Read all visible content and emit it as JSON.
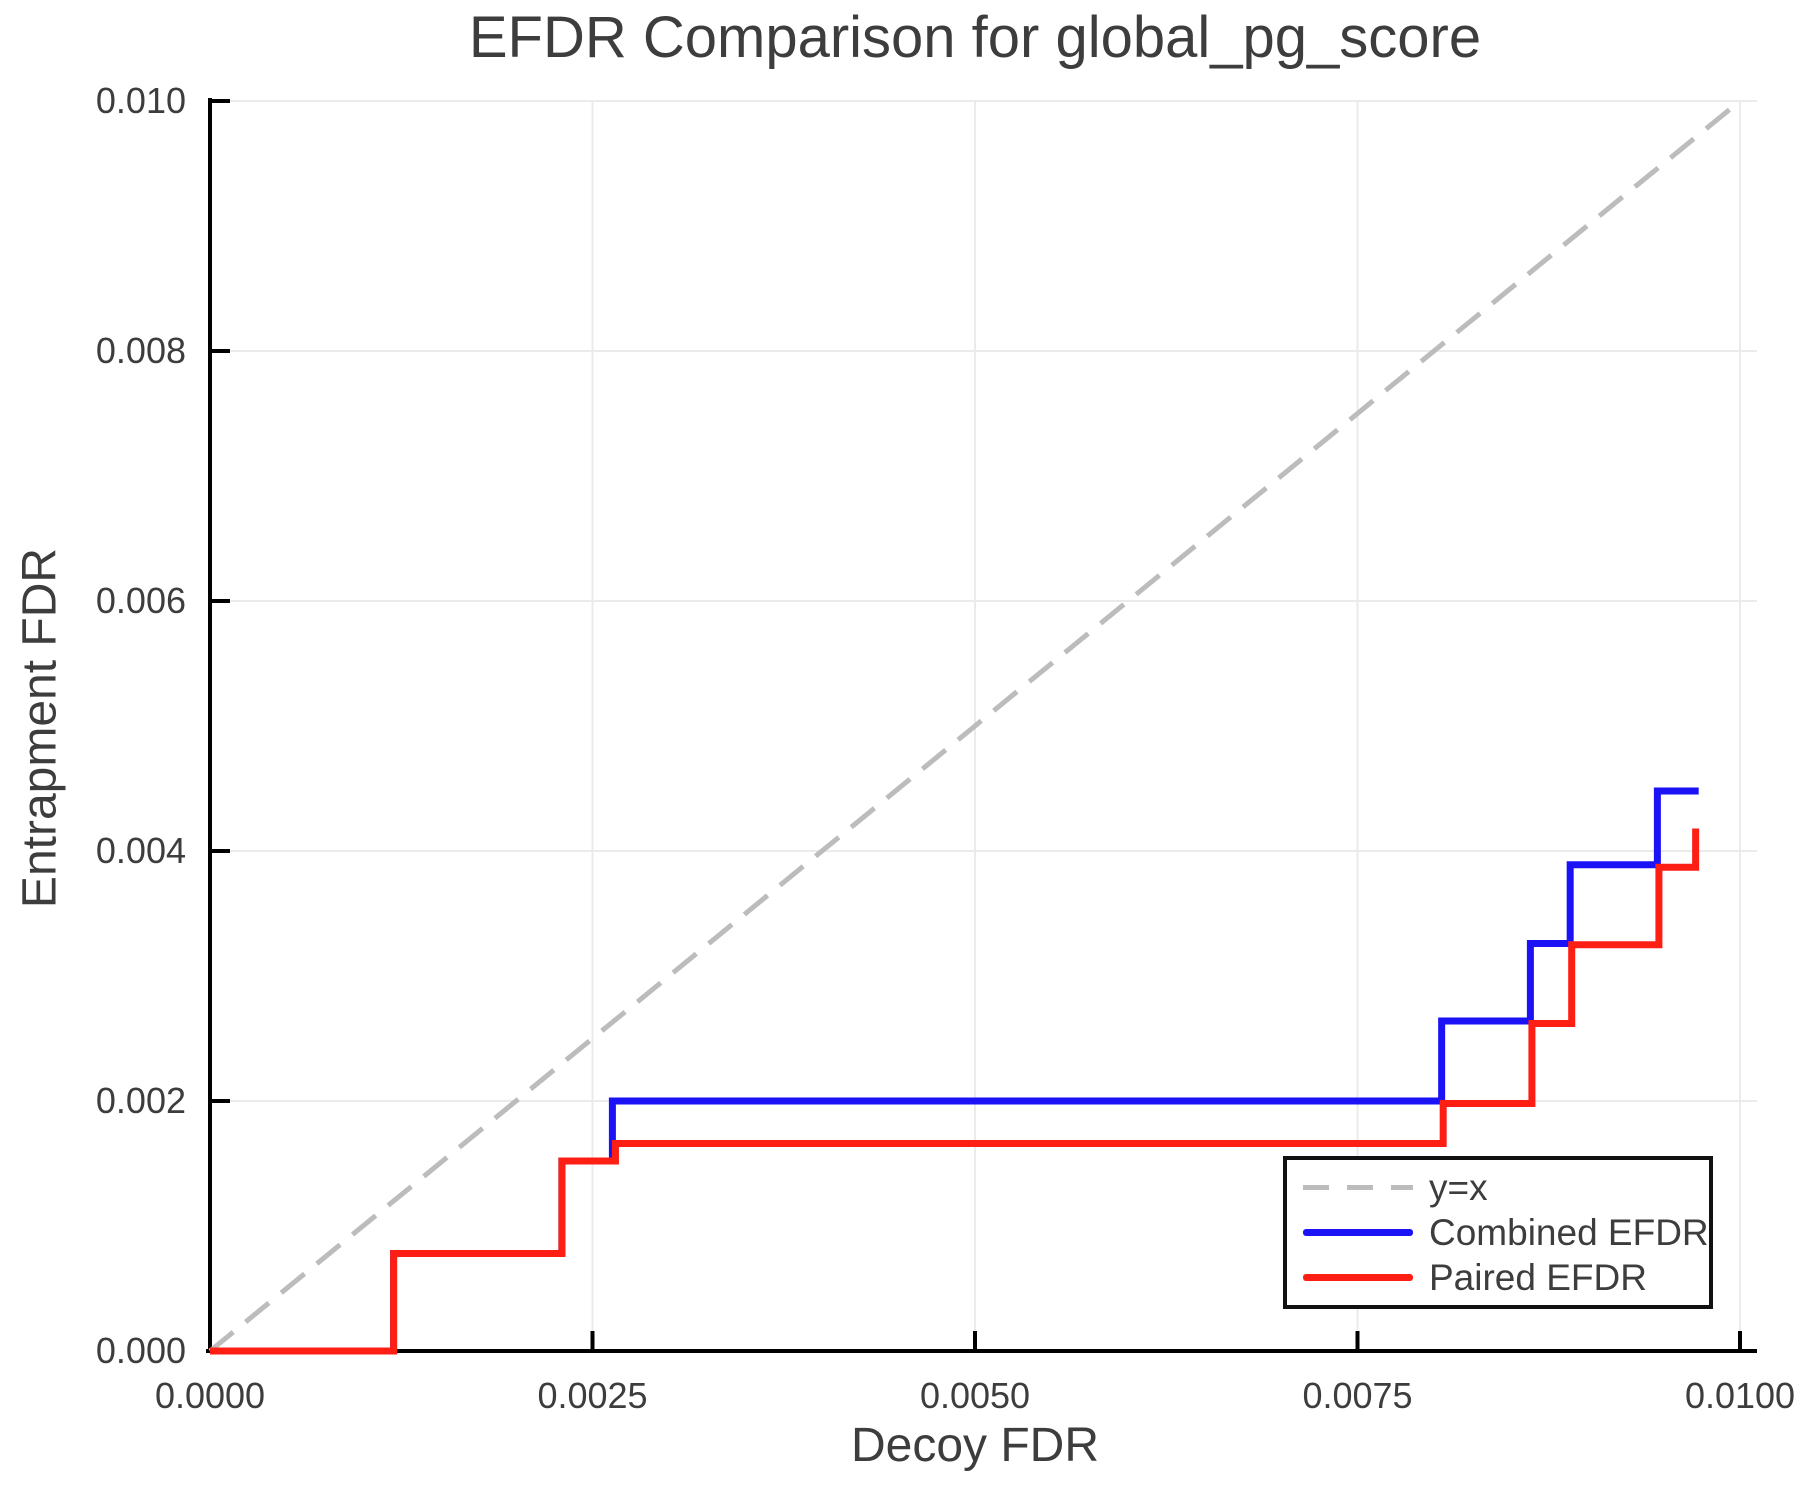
{
  "title": "EFDR Comparison for global_pg_score",
  "axes": {
    "xlabel": "Decoy FDR",
    "ylabel": "Entrapment FDR",
    "xlim": [
      0,
      0.01
    ],
    "ylim": [
      0,
      0.01
    ],
    "grid": true,
    "x_ticks": [
      {
        "value": 0.0,
        "label": "0.0000"
      },
      {
        "value": 0.0025,
        "label": "0.0025"
      },
      {
        "value": 0.005,
        "label": "0.0050"
      },
      {
        "value": 0.0075,
        "label": "0.0075"
      },
      {
        "value": 0.01,
        "label": "0.0100"
      }
    ],
    "y_ticks": [
      {
        "value": 0.0,
        "label": "0.000"
      },
      {
        "value": 0.002,
        "label": "0.002"
      },
      {
        "value": 0.004,
        "label": "0.004"
      },
      {
        "value": 0.006,
        "label": "0.006"
      },
      {
        "value": 0.008,
        "label": "0.008"
      },
      {
        "value": 0.01,
        "label": "0.010"
      }
    ]
  },
  "legend": {
    "position": "bottom-right",
    "entries": [
      {
        "label": "y=x",
        "color": "#bcbcbc",
        "dash": true
      },
      {
        "label": "Combined EFDR",
        "color": "#1b12f5",
        "dash": false
      },
      {
        "label": "Paired EFDR",
        "color": "#fd1e14",
        "dash": false
      }
    ]
  },
  "colors": {
    "background": "#ffffff",
    "grid": "#ebebeb",
    "spine": "#000000",
    "text": "#3d3d3d",
    "identity_line": "#bcbcbc",
    "combined_efdr": "#1b12f5",
    "paired_efdr": "#fd1e14"
  },
  "chart_data": {
    "type": "line",
    "title": "EFDR Comparison for global_pg_score",
    "xlabel": "Decoy FDR",
    "ylabel": "Entrapment FDR",
    "xlim": [
      0,
      0.01
    ],
    "ylim": [
      0,
      0.01
    ],
    "legend_position": "bottom-right",
    "grid": true,
    "series": [
      {
        "name": "y=x",
        "style": "dashed",
        "step": false,
        "color": "#bcbcbc",
        "points": [
          [
            0,
            0
          ],
          [
            0.01,
            0.01
          ]
        ]
      },
      {
        "name": "Combined EFDR",
        "style": "solid",
        "step": true,
        "color": "#1b12f5",
        "points": [
          [
            0,
            0
          ],
          [
            0.0012,
            0.00078
          ],
          [
            0.0023,
            0.00152
          ],
          [
            0.00263,
            0.002
          ],
          [
            0.00805,
            0.00264
          ],
          [
            0.00863,
            0.00326
          ],
          [
            0.00889,
            0.00389
          ],
          [
            0.00946,
            0.00448
          ],
          [
            0.00973,
            0.00448
          ]
        ]
      },
      {
        "name": "Paired EFDR",
        "style": "solid",
        "step": true,
        "color": "#fd1e14",
        "points": [
          [
            0,
            0
          ],
          [
            0.0012,
            0.00078
          ],
          [
            0.0023,
            0.00152
          ],
          [
            0.00265,
            0.00166
          ],
          [
            0.00806,
            0.00198
          ],
          [
            0.00864,
            0.00262
          ],
          [
            0.0089,
            0.00325
          ],
          [
            0.00947,
            0.00387
          ],
          [
            0.00971,
            0.00418
          ]
        ]
      }
    ]
  }
}
